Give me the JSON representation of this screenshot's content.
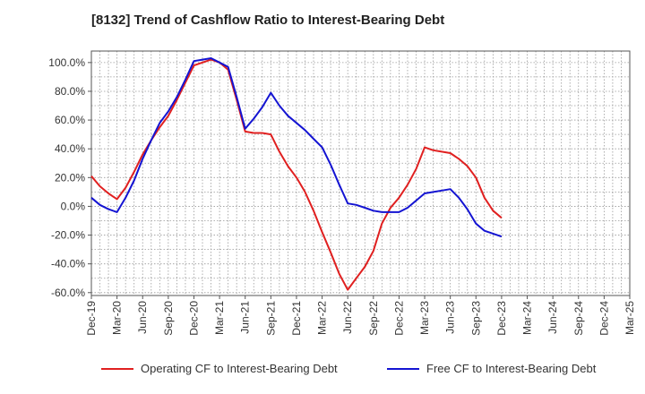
{
  "chart_data": {
    "type": "line",
    "title": "[8132]  Trend of Cashflow Ratio to Interest-Bearing Debt",
    "xlabel": "",
    "ylabel": "",
    "x_tick_labels": [
      "Dec-19",
      "Mar-20",
      "Jun-20",
      "Sep-20",
      "Dec-20",
      "Mar-21",
      "Jun-21",
      "Sep-21",
      "Dec-21",
      "Mar-22",
      "Jun-22",
      "Sep-22",
      "Dec-22",
      "Mar-23",
      "Jun-23",
      "Sep-23",
      "Dec-23",
      "Mar-24",
      "Jun-24",
      "Sep-24",
      "Dec-24",
      "Mar-25"
    ],
    "y_tick_labels": [
      "100.0%",
      "80.0%",
      "60.0%",
      "40.0%",
      "20.0%",
      "0.0%",
      "-20.0%",
      "-40.0%",
      "-60.0%"
    ],
    "y_ticks": [
      100,
      80,
      60,
      40,
      20,
      0,
      -20,
      -40,
      -60
    ],
    "ylim": [
      -62,
      108
    ],
    "grid": true,
    "legend_position": "bottom",
    "series": [
      {
        "name": "Operating CF to Interest-Bearing Debt",
        "color": "#e02020",
        "points": [
          [
            0,
            21
          ],
          [
            1,
            14
          ],
          [
            2,
            9
          ],
          [
            3,
            5
          ],
          [
            4,
            13
          ],
          [
            5,
            24
          ],
          [
            6,
            36
          ],
          [
            7,
            46
          ],
          [
            8,
            55
          ],
          [
            9,
            63
          ],
          [
            10,
            74
          ],
          [
            11,
            86
          ],
          [
            12,
            98
          ],
          [
            13,
            100
          ],
          [
            14,
            102
          ],
          [
            15,
            100
          ],
          [
            16,
            95
          ],
          [
            17,
            74
          ],
          [
            18,
            52
          ],
          [
            19,
            51
          ],
          [
            20,
            51
          ],
          [
            21,
            50
          ],
          [
            22,
            38
          ],
          [
            23,
            28
          ],
          [
            24,
            20
          ],
          [
            25,
            10
          ],
          [
            26,
            -3
          ],
          [
            27,
            -18
          ],
          [
            28,
            -32
          ],
          [
            29,
            -47
          ],
          [
            30,
            -58
          ],
          [
            31,
            -50
          ],
          [
            32,
            -42
          ],
          [
            33,
            -31
          ],
          [
            34,
            -12
          ],
          [
            35,
            -1
          ],
          [
            36,
            6
          ],
          [
            37,
            15
          ],
          [
            38,
            26
          ],
          [
            39,
            41
          ],
          [
            40,
            39
          ],
          [
            41,
            38
          ],
          [
            42,
            37
          ],
          [
            43,
            33
          ],
          [
            44,
            28
          ],
          [
            45,
            20
          ],
          [
            46,
            6
          ],
          [
            47,
            -3
          ],
          [
            48,
            -8
          ]
        ]
      },
      {
        "name": "Free CF to Interest-Bearing Debt",
        "color": "#1414d2",
        "points": [
          [
            0,
            6
          ],
          [
            1,
            1
          ],
          [
            2,
            -2
          ],
          [
            3,
            -4
          ],
          [
            4,
            6
          ],
          [
            5,
            18
          ],
          [
            6,
            33
          ],
          [
            7,
            46
          ],
          [
            8,
            58
          ],
          [
            9,
            66
          ],
          [
            10,
            76
          ],
          [
            11,
            88
          ],
          [
            12,
            101
          ],
          [
            13,
            102
          ],
          [
            14,
            103
          ],
          [
            15,
            100
          ],
          [
            16,
            97
          ],
          [
            17,
            76
          ],
          [
            18,
            54
          ],
          [
            19,
            61
          ],
          [
            20,
            69
          ],
          [
            21,
            79
          ],
          [
            22,
            70
          ],
          [
            23,
            63
          ],
          [
            24,
            58
          ],
          [
            25,
            53
          ],
          [
            26,
            47
          ],
          [
            27,
            41
          ],
          [
            28,
            29
          ],
          [
            29,
            15
          ],
          [
            30,
            2
          ],
          [
            31,
            1
          ],
          [
            32,
            -1
          ],
          [
            33,
            -3
          ],
          [
            34,
            -4
          ],
          [
            35,
            -4
          ],
          [
            36,
            -4
          ],
          [
            37,
            -1
          ],
          [
            38,
            4
          ],
          [
            39,
            9
          ],
          [
            40,
            10
          ],
          [
            41,
            11
          ],
          [
            42,
            12
          ],
          [
            43,
            6
          ],
          [
            44,
            -2
          ],
          [
            45,
            -12
          ],
          [
            46,
            -17
          ],
          [
            47,
            -19
          ],
          [
            48,
            -21
          ]
        ]
      }
    ]
  }
}
